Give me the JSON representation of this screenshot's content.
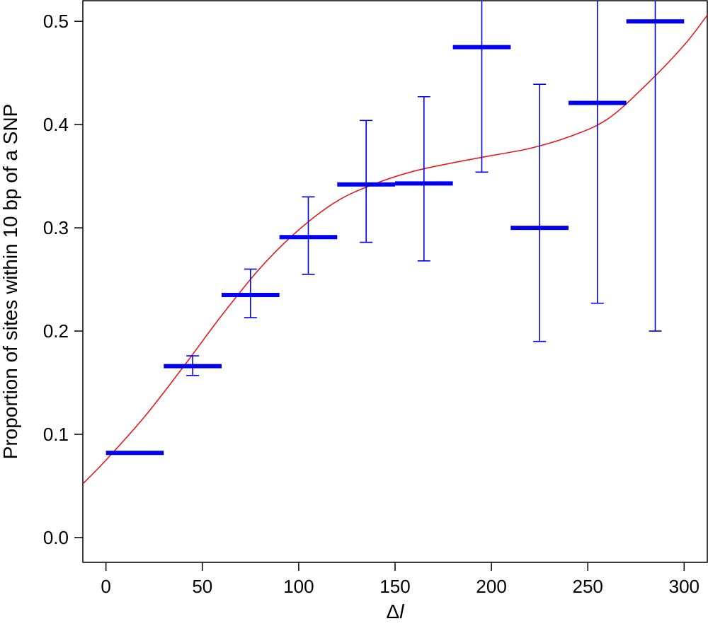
{
  "chart_data": {
    "type": "scatter",
    "title": "",
    "xlabel": "Δ",
    "xlabel_italic": "l",
    "ylabel": "Proportion of sites within 10 bp of a SNP",
    "xlim": [
      -12,
      312
    ],
    "ylim": [
      -0.024,
      0.52
    ],
    "x_ticks": [
      0,
      50,
      100,
      150,
      200,
      250,
      300
    ],
    "x_tick_labels": [
      "0",
      "50",
      "100",
      "150",
      "200",
      "250",
      "300"
    ],
    "y_ticks": [
      0.0,
      0.1,
      0.2,
      0.3,
      0.4,
      0.5
    ],
    "y_tick_labels": [
      "0.0",
      "0.1",
      "0.2",
      "0.3",
      "0.4",
      "0.5"
    ],
    "grid": false,
    "legend": "none",
    "colors": {
      "bins": "#0000ee",
      "fit": "#e41a1c",
      "axes": "#000000"
    },
    "series": [
      {
        "kind": "binned-means-with-error-bars",
        "bins": [
          {
            "x_start": 0,
            "x_end": 30,
            "x_mid": 15,
            "y": 0.082,
            "lower": null,
            "upper": null
          },
          {
            "x_start": 30,
            "x_end": 60,
            "x_mid": 45,
            "y": 0.166,
            "lower": 0.157,
            "upper": 0.176
          },
          {
            "x_start": 60,
            "x_end": 90,
            "x_mid": 75,
            "y": 0.235,
            "lower": 0.213,
            "upper": 0.26
          },
          {
            "x_start": 90,
            "x_end": 120,
            "x_mid": 105,
            "y": 0.291,
            "lower": 0.255,
            "upper": 0.33
          },
          {
            "x_start": 120,
            "x_end": 150,
            "x_mid": 135,
            "y": 0.342,
            "lower": 0.286,
            "upper": 0.404
          },
          {
            "x_start": 150,
            "x_end": 180,
            "x_mid": 165,
            "y": 0.343,
            "lower": 0.268,
            "upper": 0.427
          },
          {
            "x_start": 180,
            "x_end": 210,
            "x_mid": 195,
            "y": 0.475,
            "lower": 0.354,
            "upper": 0.53
          },
          {
            "x_start": 210,
            "x_end": 240,
            "x_mid": 225,
            "y": 0.3,
            "lower": 0.19,
            "upper": 0.439
          },
          {
            "x_start": 240,
            "x_end": 270,
            "x_mid": 255,
            "y": 0.421,
            "lower": 0.227,
            "upper": 0.53
          },
          {
            "x_start": 270,
            "x_end": 300,
            "x_mid": 285,
            "y": 0.5,
            "lower": 0.2,
            "upper": 0.53
          }
        ]
      },
      {
        "kind": "fitted-curve",
        "x": [
          -12,
          0,
          20,
          40,
          60,
          80,
          100,
          120,
          140,
          160,
          180,
          200,
          220,
          240,
          260,
          280,
          300,
          312
        ],
        "y": [
          0.052,
          0.075,
          0.117,
          0.165,
          0.215,
          0.261,
          0.298,
          0.326,
          0.343,
          0.355,
          0.363,
          0.37,
          0.377,
          0.388,
          0.405,
          0.438,
          0.477,
          0.506
        ]
      }
    ]
  }
}
